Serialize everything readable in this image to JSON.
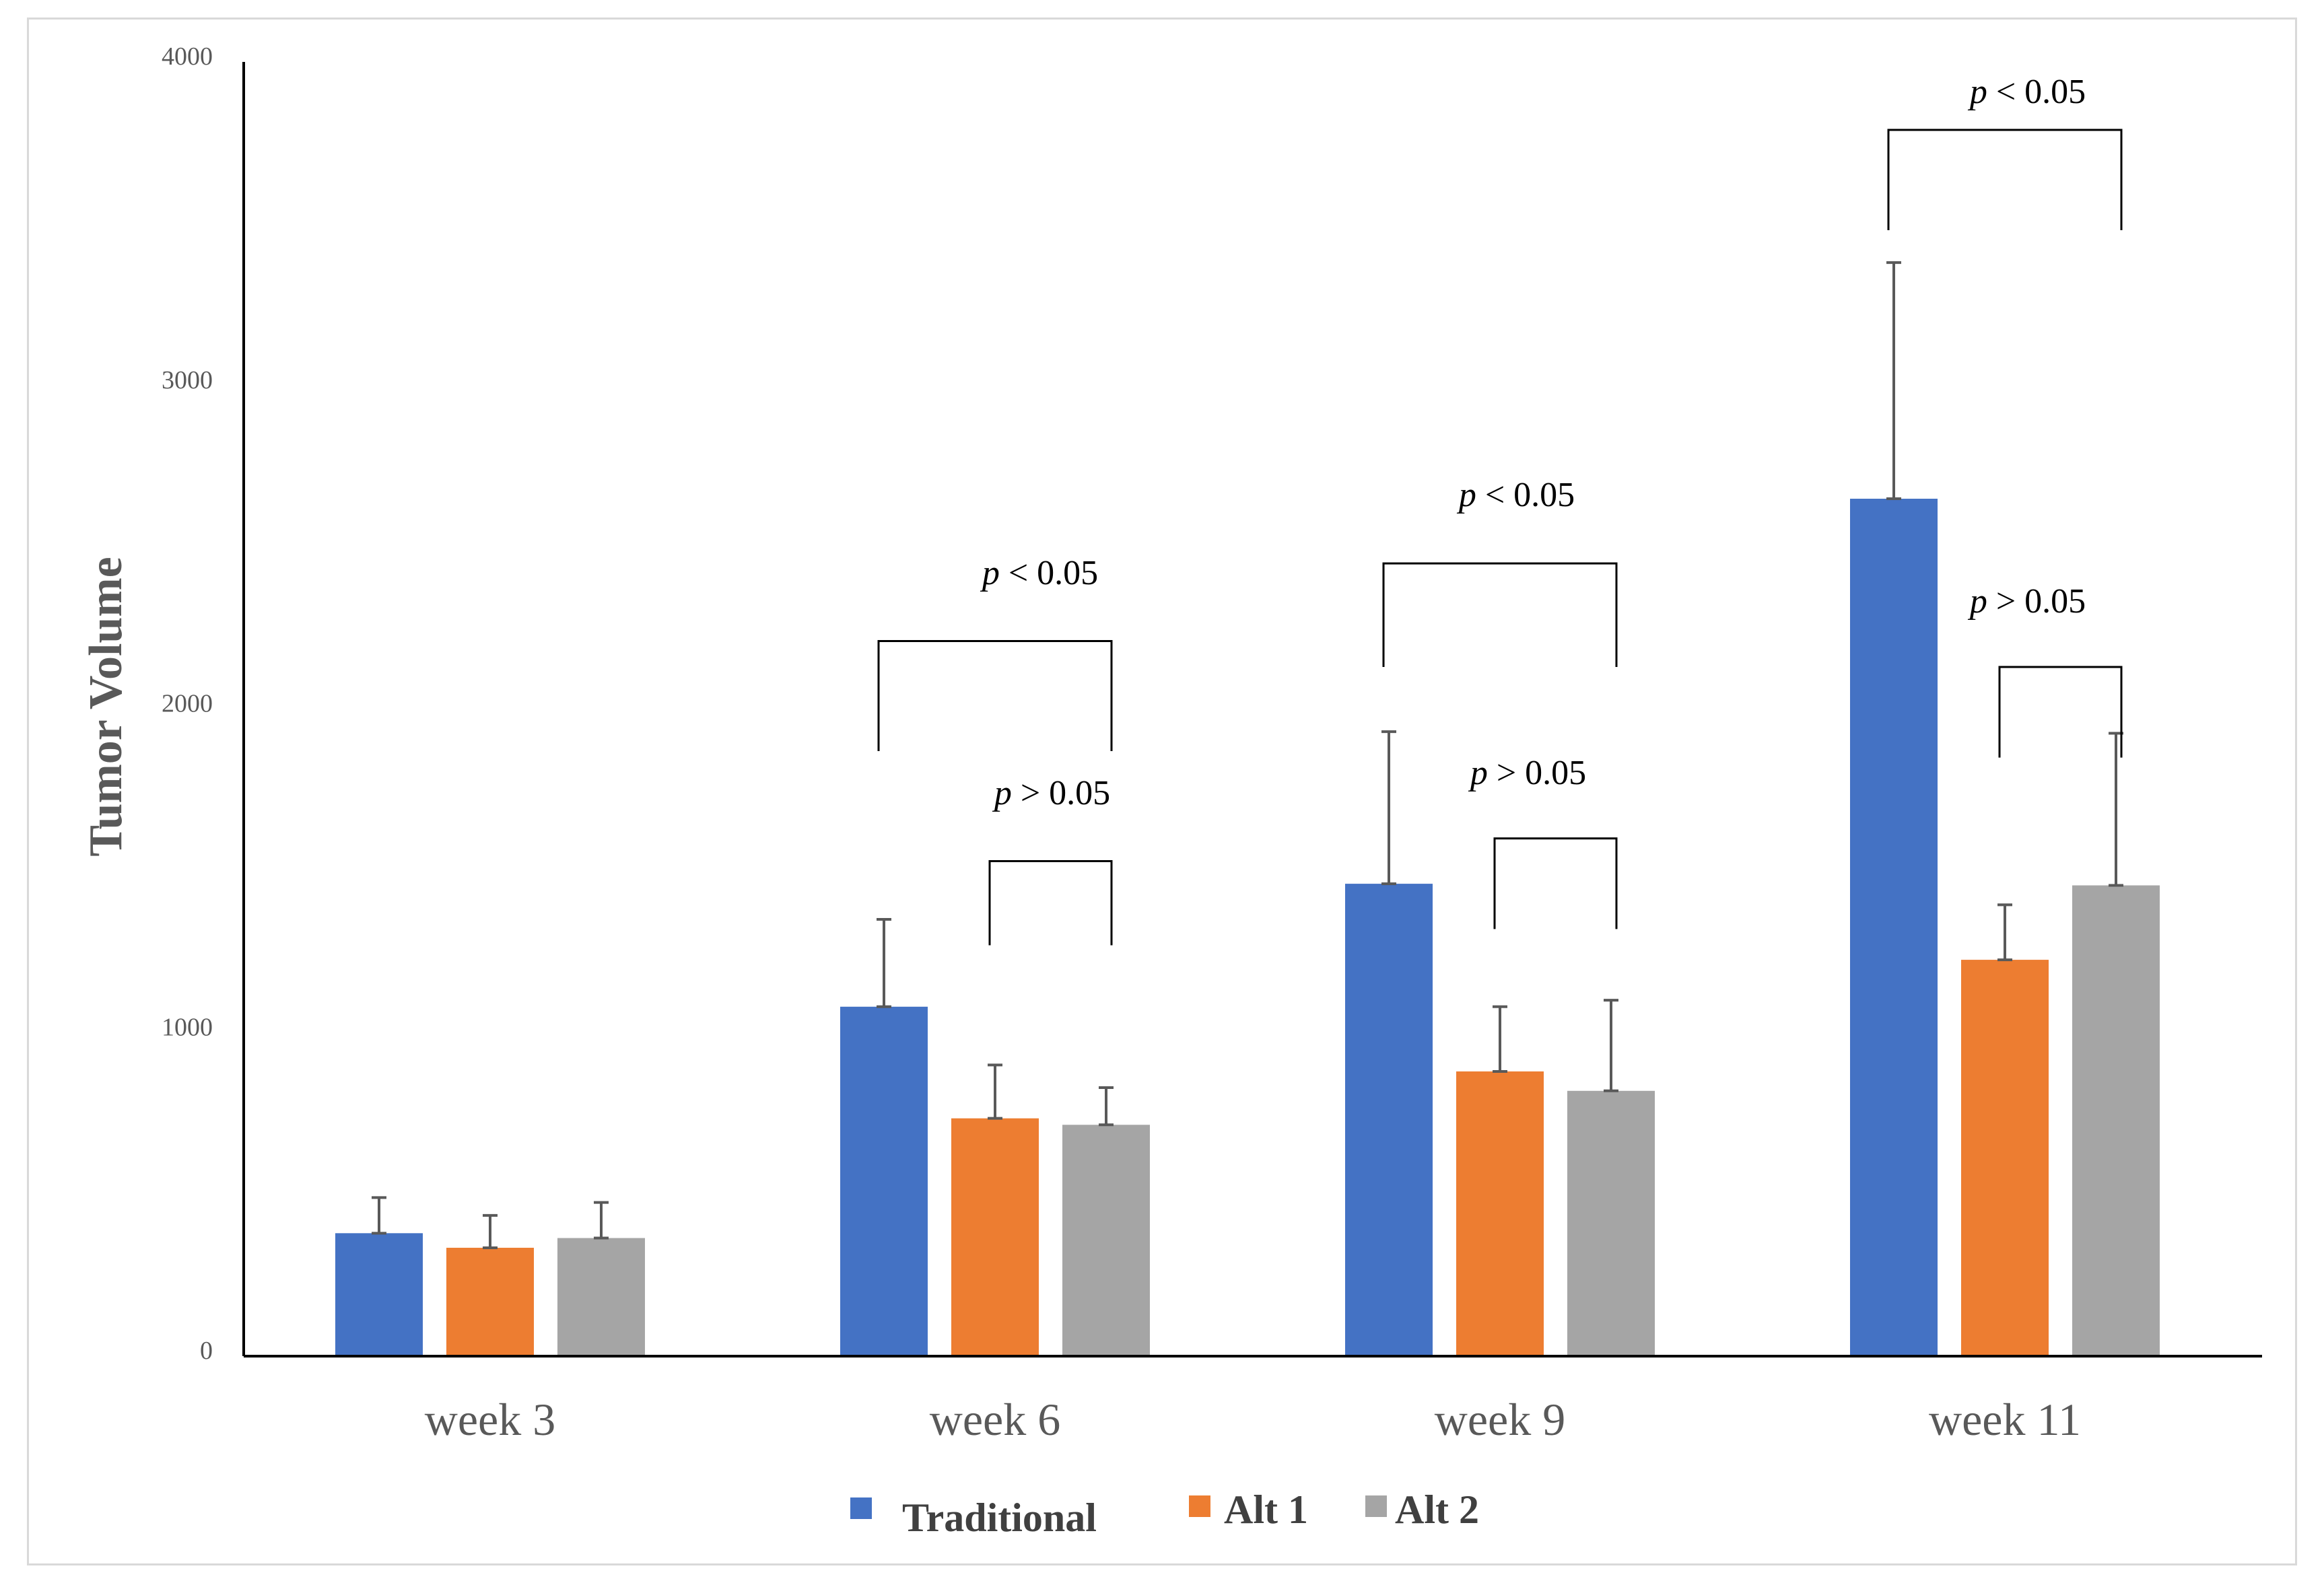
{
  "chart_data": {
    "type": "bar",
    "title": "",
    "xlabel": "",
    "ylabel": "Tumor Volume",
    "ylim": [
      0,
      4000
    ],
    "yticks": [
      0,
      1000,
      2000,
      3000,
      4000
    ],
    "grid": false,
    "legend_position": "bottom-center",
    "categories": [
      "week 3",
      "week 6",
      "week 9",
      "week 11"
    ],
    "series": [
      {
        "name": "Traditional",
        "color": "#4472C4",
        "values": [
          380,
          1080,
          1460,
          2650
        ],
        "errors": [
          110,
          270,
          470,
          730
        ]
      },
      {
        "name": "Alt 1",
        "color": "#ED7D31",
        "values": [
          335,
          735,
          880,
          1225
        ],
        "errors": [
          100,
          165,
          200,
          170
        ]
      },
      {
        "name": "Alt 2",
        "color": "#A5A5A5",
        "values": [
          365,
          715,
          820,
          1455
        ],
        "errors": [
          110,
          115,
          280,
          470
        ]
      }
    ],
    "annotations": [
      {
        "category": "week 6",
        "from_series": 0,
        "to_series": 2,
        "italic": "p",
        "text": " < 0.05"
      },
      {
        "category": "week 6",
        "from_series": 1,
        "to_series": 2,
        "italic": "p",
        "text": " > 0.05"
      },
      {
        "category": "week 9",
        "from_series": 0,
        "to_series": 2,
        "italic": "p",
        "text": " < 0.05"
      },
      {
        "category": "week 9",
        "from_series": 1,
        "to_series": 2,
        "italic": "p",
        "text": " > 0.05"
      },
      {
        "category": "week 11",
        "from_series": 0,
        "to_series": 2,
        "italic": "p",
        "text": " < 0.05"
      },
      {
        "category": "week 11",
        "from_series": 1,
        "to_series": 2,
        "italic": "p",
        "text": " > 0.05"
      }
    ]
  }
}
